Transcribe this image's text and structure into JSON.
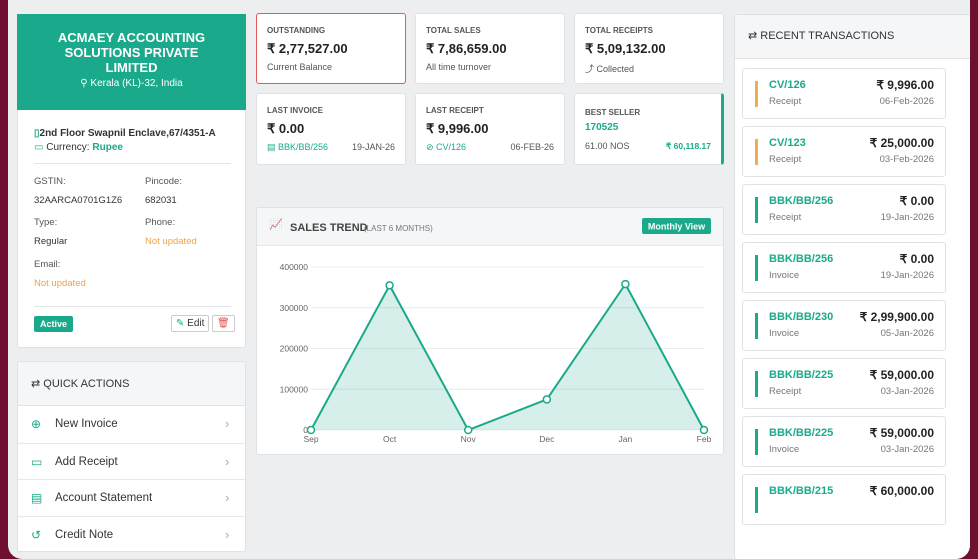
{
  "company": {
    "name": "ACMAEY ACCOUNTING SOLUTIONS PRIVATE LIMITED",
    "location": "Kerala (KL)-32, India",
    "address": "2nd Floor Swapnil Enclave,67/4351-A",
    "currency_label": "Currency:",
    "currency": "Rupee",
    "fields": [
      {
        "label": "GSTIN:",
        "value": "32AARCA0701G1Z6"
      },
      {
        "label": "Pincode:",
        "value": "682031"
      },
      {
        "label": "Type:",
        "value": "Regular"
      },
      {
        "label": "Phone:",
        "value": "Not updated"
      },
      {
        "label": "Email:",
        "value": "Not updated"
      }
    ],
    "status": "Active",
    "edit": "Edit"
  },
  "quick_actions": {
    "title": "QUICK ACTIONS",
    "items": [
      "New Invoice",
      "Add Receipt",
      "Account Statement",
      "Credit Note"
    ]
  },
  "stats": [
    {
      "label": "OUTSTANDING",
      "amount": "₹ 2,77,527.00",
      "note": "Current Balance"
    },
    {
      "label": "TOTAL SALES",
      "amount": "₹ 7,86,659.00",
      "note": "All time turnover"
    },
    {
      "label": "TOTAL RECEIPTS",
      "amount": "₹ 5,09,132.00",
      "note": "Collected"
    },
    {
      "label": "LAST INVOICE",
      "amount": "₹ 0.00",
      "note": "BBK/BB/256",
      "extra": "19-JAN-26"
    },
    {
      "label": "LAST RECEIPT",
      "amount": "₹ 9,996.00",
      "note": "CV/126",
      "extra": "06-FEB-26"
    },
    {
      "label": "BEST SELLER",
      "amount": "170525",
      "note": "61.00 NOS",
      "extra": "₹ 60,118.17"
    }
  ],
  "sales_trend": {
    "type": "area",
    "title": "SALES TREND",
    "subtitle": "(LAST 6 MONTHS)",
    "button": "Monthly View",
    "categories": [
      "Sep",
      "Oct",
      "Nov",
      "Dec",
      "Jan",
      "Feb"
    ],
    "values": [
      0,
      355000,
      0,
      75000,
      358000,
      0
    ],
    "ylim": [
      0,
      400000
    ],
    "yticks": [
      0,
      100000,
      200000,
      300000,
      400000
    ],
    "grid": true,
    "color": "#1aa98a"
  },
  "transactions": {
    "title": "RECENT TRANSACTIONS",
    "items": [
      {
        "ref": "CV/126",
        "amount": "₹ 9,996.00",
        "type": "Receipt",
        "date": "06-Feb-2026",
        "color": "#f0ad4e"
      },
      {
        "ref": "CV/123",
        "amount": "₹ 25,000.00",
        "type": "Receipt",
        "date": "03-Feb-2026",
        "color": "#f0ad4e"
      },
      {
        "ref": "BBK/BB/256",
        "amount": "₹ 0.00",
        "type": "Receipt",
        "date": "19-Jan-2026",
        "color": "#1aa98a"
      },
      {
        "ref": "BBK/BB/256",
        "amount": "₹ 0.00",
        "type": "Invoice",
        "date": "19-Jan-2026",
        "color": "#1aa98a"
      },
      {
        "ref": "BBK/BB/230",
        "amount": "₹ 2,99,900.00",
        "type": "Invoice",
        "date": "05-Jan-2026",
        "color": "#1aa98a"
      },
      {
        "ref": "BBK/BB/225",
        "amount": "₹ 59,000.00",
        "type": "Receipt",
        "date": "03-Jan-2026",
        "color": "#1aa98a"
      },
      {
        "ref": "BBK/BB/225",
        "amount": "₹ 59,000.00",
        "type": "Invoice",
        "date": "03-Jan-2026",
        "color": "#1aa98a"
      },
      {
        "ref": "BBK/BB/215",
        "amount": "₹ 60,000.00",
        "color": "#1aa98a"
      }
    ]
  }
}
